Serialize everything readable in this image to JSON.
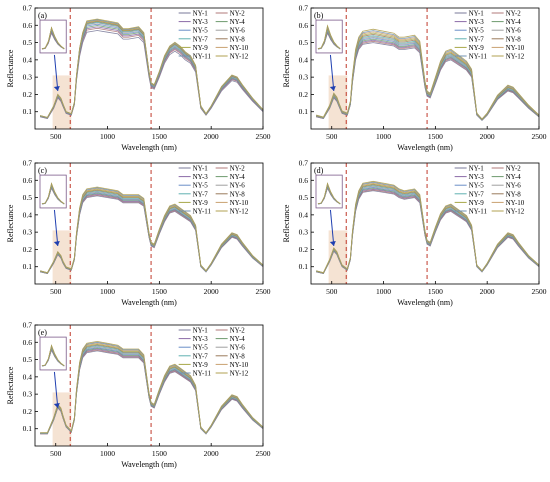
{
  "chart_data": [
    {
      "panel_label": "(a)",
      "type": "line",
      "xlabel": "Wavelength (nm)",
      "ylabel": "Reflectance",
      "xlim": [
        300,
        2500
      ],
      "ylim": [
        0,
        0.7
      ],
      "xticks": [
        500,
        1000,
        1500,
        2000,
        2500
      ],
      "yticks": [
        0.1,
        0.2,
        0.3,
        0.4,
        0.5,
        0.6,
        0.7
      ],
      "dashed_lines_x": [
        640,
        1420
      ],
      "series_names": [
        "NY-1",
        "NY-2",
        "NY-3",
        "NY-4",
        "NY-5",
        "NY-6",
        "NY-7",
        "NY-8",
        "NY-9",
        "NY-10",
        "NY-11",
        "NY-12"
      ],
      "x": [
        350,
        420,
        480,
        520,
        550,
        570,
        600,
        650,
        680,
        700,
        730,
        760,
        800,
        900,
        1000,
        1100,
        1150,
        1200,
        1300,
        1350,
        1400,
        1420,
        1450,
        1500,
        1550,
        1600,
        1650,
        1700,
        1750,
        1800,
        1850,
        1900,
        1950,
        2000,
        2100,
        2200,
        2250,
        2300,
        2400,
        2500
      ],
      "series_base": [
        0.07,
        0.06,
        0.12,
        0.18,
        0.16,
        0.13,
        0.09,
        0.08,
        0.14,
        0.28,
        0.42,
        0.5,
        0.56,
        0.57,
        0.56,
        0.55,
        0.52,
        0.52,
        0.53,
        0.5,
        0.3,
        0.24,
        0.23,
        0.3,
        0.38,
        0.43,
        0.45,
        0.43,
        0.4,
        0.38,
        0.33,
        0.12,
        0.08,
        0.12,
        0.22,
        0.28,
        0.27,
        0.23,
        0.16,
        0.1
      ],
      "offsets": [
        0.0,
        0.012,
        0.02,
        0.028,
        0.035,
        0.042,
        0.046,
        0.05,
        0.054,
        0.057,
        0.06,
        0.064
      ]
    },
    {
      "panel_label": "(b)",
      "type": "line",
      "xlabel": "Wavelength (nm)",
      "ylabel": "Reflectance",
      "xlim": [
        300,
        2500
      ],
      "ylim": [
        0,
        0.7
      ],
      "xticks": [
        500,
        1000,
        1500,
        2000,
        2500
      ],
      "yticks": [
        0.1,
        0.2,
        0.3,
        0.4,
        0.5,
        0.6,
        0.7
      ],
      "dashed_lines_x": [
        640,
        1420
      ],
      "series_names": [
        "NY-1",
        "NY-2",
        "NY-3",
        "NY-4",
        "NY-5",
        "NY-6",
        "NY-7",
        "NY-8",
        "NY-9",
        "NY-10",
        "NY-11",
        "NY-12"
      ],
      "x": [
        350,
        420,
        480,
        520,
        550,
        570,
        600,
        650,
        680,
        700,
        730,
        760,
        800,
        900,
        1000,
        1100,
        1150,
        1200,
        1300,
        1350,
        1400,
        1420,
        1450,
        1500,
        1550,
        1600,
        1650,
        1700,
        1750,
        1800,
        1850,
        1900,
        1950,
        2000,
        2100,
        2200,
        2250,
        2300,
        2400,
        2500
      ],
      "series_base": [
        0.07,
        0.06,
        0.12,
        0.18,
        0.16,
        0.13,
        0.09,
        0.08,
        0.14,
        0.27,
        0.4,
        0.46,
        0.49,
        0.5,
        0.49,
        0.48,
        0.46,
        0.46,
        0.47,
        0.44,
        0.24,
        0.19,
        0.18,
        0.26,
        0.34,
        0.39,
        0.4,
        0.38,
        0.36,
        0.34,
        0.3,
        0.08,
        0.05,
        0.08,
        0.17,
        0.22,
        0.21,
        0.18,
        0.12,
        0.07
      ],
      "offsets": [
        0.0,
        0.008,
        0.015,
        0.022,
        0.03,
        0.037,
        0.044,
        0.052,
        0.06,
        0.068,
        0.076,
        0.085
      ]
    },
    {
      "panel_label": "(c)",
      "type": "line",
      "xlabel": "Wavelength (nm)",
      "ylabel": "Reflectance",
      "xlim": [
        300,
        2500
      ],
      "ylim": [
        0,
        0.7
      ],
      "xticks": [
        500,
        1000,
        1500,
        2000,
        2500
      ],
      "yticks": [
        0.1,
        0.2,
        0.3,
        0.4,
        0.5,
        0.6,
        0.7
      ],
      "dashed_lines_x": [
        640,
        1420
      ],
      "series_names": [
        "NY-1",
        "NY-2",
        "NY-3",
        "NY-4",
        "NY-5",
        "NY-6",
        "NY-7",
        "NY-8",
        "NY-9",
        "NY-10",
        "NY-11",
        "NY-12"
      ],
      "x": [
        350,
        420,
        480,
        520,
        550,
        570,
        600,
        650,
        680,
        700,
        730,
        760,
        800,
        900,
        1000,
        1100,
        1150,
        1200,
        1300,
        1350,
        1400,
        1420,
        1450,
        1500,
        1550,
        1600,
        1650,
        1700,
        1750,
        1800,
        1850,
        1900,
        1950,
        2000,
        2100,
        2200,
        2250,
        2300,
        2400,
        2500
      ],
      "series_base": [
        0.07,
        0.06,
        0.12,
        0.17,
        0.15,
        0.12,
        0.09,
        0.08,
        0.14,
        0.27,
        0.4,
        0.47,
        0.5,
        0.51,
        0.5,
        0.49,
        0.47,
        0.47,
        0.47,
        0.45,
        0.27,
        0.22,
        0.21,
        0.29,
        0.36,
        0.41,
        0.42,
        0.4,
        0.38,
        0.36,
        0.31,
        0.1,
        0.07,
        0.11,
        0.21,
        0.27,
        0.26,
        0.22,
        0.15,
        0.1
      ],
      "offsets": [
        0.0,
        0.005,
        0.01,
        0.015,
        0.02,
        0.025,
        0.03,
        0.035,
        0.04,
        0.045,
        0.05,
        0.055
      ]
    },
    {
      "panel_label": "(d)",
      "type": "line",
      "xlabel": "Wavelength (nm)",
      "ylabel": "Reflectance",
      "xlim": [
        300,
        2500
      ],
      "ylim": [
        0,
        0.7
      ],
      "xticks": [
        500,
        1000,
        1500,
        2000,
        2500
      ],
      "yticks": [
        0.1,
        0.2,
        0.3,
        0.4,
        0.5,
        0.6,
        0.7
      ],
      "dashed_lines_x": [
        640,
        1420
      ],
      "series_names": [
        "NY-1",
        "NY-2",
        "NY-3",
        "NY-4",
        "NY-5",
        "NY-6",
        "NY-7",
        "NY-8",
        "NY-9",
        "NY-10",
        "NY-11",
        "NY-12"
      ],
      "x": [
        350,
        420,
        480,
        520,
        550,
        570,
        600,
        650,
        680,
        700,
        730,
        760,
        800,
        900,
        1000,
        1100,
        1150,
        1200,
        1300,
        1350,
        1400,
        1420,
        1450,
        1500,
        1550,
        1600,
        1650,
        1700,
        1750,
        1800,
        1850,
        1900,
        1950,
        2000,
        2100,
        2200,
        2250,
        2300,
        2400,
        2500
      ],
      "series_base": [
        0.07,
        0.06,
        0.13,
        0.19,
        0.17,
        0.14,
        0.1,
        0.08,
        0.14,
        0.28,
        0.42,
        0.49,
        0.53,
        0.54,
        0.53,
        0.52,
        0.5,
        0.49,
        0.5,
        0.47,
        0.28,
        0.23,
        0.22,
        0.3,
        0.37,
        0.41,
        0.42,
        0.4,
        0.38,
        0.36,
        0.31,
        0.1,
        0.07,
        0.11,
        0.21,
        0.27,
        0.26,
        0.22,
        0.15,
        0.1
      ],
      "offsets": [
        0.0,
        0.005,
        0.01,
        0.015,
        0.02,
        0.025,
        0.03,
        0.035,
        0.04,
        0.045,
        0.05,
        0.055
      ]
    },
    {
      "panel_label": "(e)",
      "type": "line",
      "xlabel": "Wavelength (nm)",
      "ylabel": "Reflectance",
      "xlim": [
        300,
        2500
      ],
      "ylim": [
        0,
        0.7
      ],
      "xticks": [
        500,
        1000,
        1500,
        2000,
        2500
      ],
      "yticks": [
        0.1,
        0.2,
        0.3,
        0.4,
        0.5,
        0.6,
        0.7
      ],
      "dashed_lines_x": [
        640,
        1420
      ],
      "series_names": [
        "NY-1",
        "NY-2",
        "NY-3",
        "NY-4",
        "NY-5",
        "NY-6",
        "NY-7",
        "NY-8",
        "NY-9",
        "NY-10",
        "NY-11",
        "NY-12"
      ],
      "x": [
        350,
        420,
        480,
        520,
        550,
        570,
        600,
        650,
        680,
        700,
        730,
        760,
        800,
        900,
        1000,
        1100,
        1150,
        1200,
        1300,
        1350,
        1400,
        1420,
        1450,
        1500,
        1550,
        1600,
        1650,
        1700,
        1750,
        1800,
        1850,
        1900,
        1950,
        2000,
        2100,
        2200,
        2250,
        2300,
        2400,
        2500
      ],
      "series_base": [
        0.07,
        0.07,
        0.15,
        0.22,
        0.2,
        0.16,
        0.11,
        0.08,
        0.15,
        0.3,
        0.44,
        0.51,
        0.54,
        0.55,
        0.54,
        0.53,
        0.51,
        0.51,
        0.51,
        0.48,
        0.28,
        0.23,
        0.22,
        0.3,
        0.37,
        0.42,
        0.43,
        0.41,
        0.39,
        0.37,
        0.32,
        0.1,
        0.07,
        0.11,
        0.21,
        0.27,
        0.26,
        0.22,
        0.15,
        0.1
      ],
      "offsets": [
        0.0,
        0.005,
        0.01,
        0.015,
        0.02,
        0.025,
        0.03,
        0.035,
        0.04,
        0.045,
        0.05,
        0.055
      ]
    }
  ],
  "colors": {
    "series": [
      "#7a7a9a",
      "#b07a7a",
      "#8a6aa8",
      "#6e9a6e",
      "#6a8ec8",
      "#a0a0a0",
      "#5fb0b0",
      "#9a7a5a",
      "#a8a848",
      "#c8a070",
      "#7090b0",
      "#b0a050"
    ],
    "dashed_line": "#c0392b",
    "highlight_band": "#f2dcc8",
    "inset_box": "#7b5a8a",
    "arrow": "#1f3fb0",
    "axis": "#000000"
  }
}
